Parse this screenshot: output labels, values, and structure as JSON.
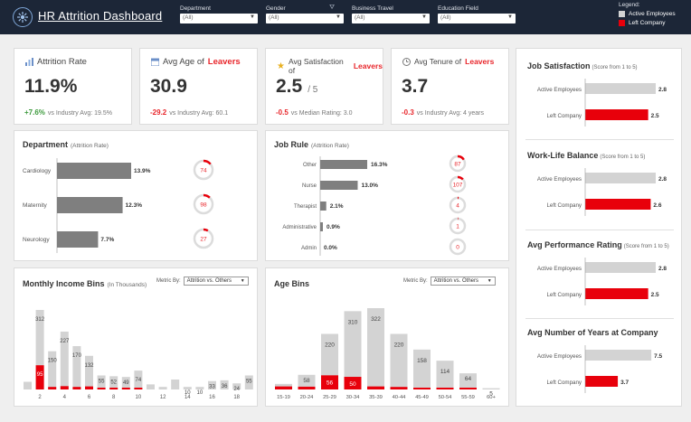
{
  "header": {
    "title": "HR Attrition Dashboard",
    "filters": [
      {
        "label": "Department",
        "value": "(All)"
      },
      {
        "label": "Gender",
        "value": "(All)"
      },
      {
        "label": "Business Travel",
        "value": "(All)"
      },
      {
        "label": "Education Field",
        "value": "(All)"
      }
    ],
    "legend": {
      "title": "Legend:",
      "items": [
        {
          "label": "Active Employees",
          "color": "#d3d3d3"
        },
        {
          "label": "Left Company",
          "color": "#e8000b"
        }
      ]
    }
  },
  "kpis": [
    {
      "icon": "chart-icon",
      "title": "Attrition Rate",
      "title_hl": "",
      "value": "11.9%",
      "sub": "",
      "delta": "+7.6%",
      "delta_color": "green",
      "compare": "vs Industry Avg: 19.5%"
    },
    {
      "icon": "calendar-icon",
      "title": "Avg Age of",
      "title_hl": "Leavers",
      "value": "30.9",
      "sub": "",
      "delta": "-29.2",
      "delta_color": "red",
      "compare": "vs Industry Avg: 60.1"
    },
    {
      "icon": "star-icon",
      "title": "Avg Satisfaction of",
      "title_hl": "Leavers",
      "value": "2.5",
      "sub": "/ 5",
      "delta": "-0.5",
      "delta_color": "red",
      "compare": "vs Median Rating: 3.0"
    },
    {
      "icon": "clock-icon",
      "title": "Avg Tenure of",
      "title_hl": "Leavers",
      "value": "3.7",
      "sub": "",
      "delta": "-0.3",
      "delta_color": "red",
      "compare": "vs Industry Avg: 4 years"
    }
  ],
  "department": {
    "title": "Department",
    "subtitle": "(Attrition Rate)",
    "rows": [
      {
        "name": "Cardiology",
        "rate": 13.9,
        "label": "13.9%",
        "count": 74,
        "fraction": 0.14
      },
      {
        "name": "Maternity",
        "rate": 12.3,
        "label": "12.3%",
        "count": 98,
        "fraction": 0.12
      },
      {
        "name": "Neurology",
        "rate": 7.7,
        "label": "7.7%",
        "count": 27,
        "fraction": 0.08
      }
    ]
  },
  "jobrole": {
    "title": "Job Rule",
    "subtitle": "(Attrition Rate)",
    "rows": [
      {
        "name": "Other",
        "rate": 16.3,
        "label": "16.3%",
        "count": 87,
        "fraction": 0.16
      },
      {
        "name": "Nurse",
        "rate": 13.0,
        "label": "13.0%",
        "count": 107,
        "fraction": 0.13
      },
      {
        "name": "Therapist",
        "rate": 2.1,
        "label": "2.1%",
        "count": 4,
        "fraction": 0.02
      },
      {
        "name": "Administrative",
        "rate": 0.9,
        "label": "0.9%",
        "count": 1,
        "fraction": 0.01
      },
      {
        "name": "Admin",
        "rate": 0.0,
        "label": "0.0%",
        "count": 0,
        "fraction": 0.0
      }
    ]
  },
  "income": {
    "title": "Monthly Income Bins",
    "subtitle": "(In Thousands)",
    "metric_label": "Metric By:",
    "metric_value": "Attrition vs. Others",
    "tick_labels": [
      "2",
      "4",
      "6",
      "8",
      "10",
      "12",
      "14",
      "16",
      "18"
    ],
    "bins": [
      {
        "active": 30,
        "left": 0,
        "label": ""
      },
      {
        "active": 312,
        "left": 95,
        "label": "312",
        "left_label": "95"
      },
      {
        "active": 150,
        "left": 10,
        "label": "150"
      },
      {
        "active": 227,
        "left": 13,
        "label": "227"
      },
      {
        "active": 170,
        "left": 10,
        "label": "170"
      },
      {
        "active": 132,
        "left": 12,
        "label": "132"
      },
      {
        "active": 55,
        "left": 3,
        "label": "55"
      },
      {
        "active": 52,
        "left": 2,
        "label": "52"
      },
      {
        "active": 49,
        "left": 2,
        "label": "49"
      },
      {
        "active": 74,
        "left": 3,
        "label": "74"
      },
      {
        "active": 20,
        "left": 0,
        "label": ""
      },
      {
        "active": 10,
        "left": 0,
        "label": ""
      },
      {
        "active": 39,
        "left": 0,
        "label": ""
      },
      {
        "active": 10,
        "left": 0,
        "label": "10"
      },
      {
        "active": 10,
        "left": 0,
        "label": "10"
      },
      {
        "active": 33,
        "left": 0,
        "label": "33"
      },
      {
        "active": 36,
        "left": 0,
        "label": "36"
      },
      {
        "active": 24,
        "left": 0,
        "label": "24"
      },
      {
        "active": 55,
        "left": 0,
        "label": "55"
      }
    ]
  },
  "age": {
    "title": "Age Bins",
    "metric_label": "Metric By:",
    "metric_value": "Attrition vs. Others",
    "bins": [
      {
        "range": "15-19",
        "active": 22,
        "left": 12,
        "label": "",
        "left_label": ""
      },
      {
        "range": "20-24",
        "active": 58,
        "left": 11,
        "label": "58",
        "left_label": ""
      },
      {
        "range": "25-29",
        "active": 220,
        "left": 56,
        "label": "220",
        "left_label": "56"
      },
      {
        "range": "30-34",
        "active": 310,
        "left": 50,
        "label": "310",
        "left_label": "50"
      },
      {
        "range": "35-39",
        "active": 322,
        "left": 12,
        "label": "322",
        "left_label": ""
      },
      {
        "range": "40-44",
        "active": 220,
        "left": 10,
        "label": "220",
        "left_label": ""
      },
      {
        "range": "45-49",
        "active": 158,
        "left": 5,
        "label": "158",
        "left_label": ""
      },
      {
        "range": "50-54",
        "active": 114,
        "left": 4,
        "label": "114",
        "left_label": ""
      },
      {
        "range": "55-59",
        "active": 64,
        "left": 2,
        "label": "64",
        "left_label": ""
      },
      {
        "range": "60+",
        "active": 5,
        "left": 0,
        "label": "5",
        "left_label": ""
      }
    ]
  },
  "right_panel": [
    {
      "title": "Job Satisfaction",
      "subtitle": "(Score from 1 to 5)",
      "active": 2.8,
      "active_label": "2.8",
      "left": 2.5,
      "left_label": "2.5"
    },
    {
      "title": "Work-Life Balance",
      "subtitle": "(Score from 1 to 5)",
      "active": 2.8,
      "active_label": "2.8",
      "left": 2.6,
      "left_label": "2.6"
    },
    {
      "title": "Avg Performance Rating",
      "subtitle": "(Score from 1 to 5)",
      "active": 2.8,
      "active_label": "2.8",
      "left": 2.5,
      "left_label": "2.5"
    },
    {
      "title": "Avg Number of Years at Company",
      "subtitle": "",
      "active": 7.5,
      "active_label": "7.5",
      "left": 3.7,
      "left_label": "3.7"
    }
  ],
  "right_labels": {
    "active": "Active Employees",
    "left": "Left Company"
  },
  "colors": {
    "active": "#d3d3d3",
    "left": "#e8000b",
    "bar": "#7f7f7f",
    "accent": "#e8262b"
  }
}
